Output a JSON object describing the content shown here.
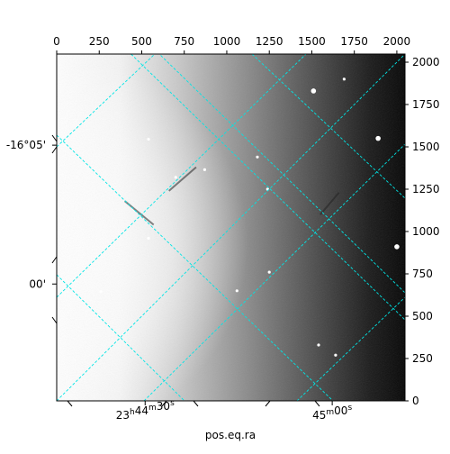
{
  "chart_data": {
    "type": "heatmap",
    "title": "",
    "colormap": "gray",
    "pixel_range": [
      0,
      2048
    ],
    "top_axis": {
      "ticks": [
        0,
        250,
        500,
        750,
        1000,
        1250,
        1500,
        1750,
        2000
      ],
      "tick_labels": [
        "0",
        "250",
        "500",
        "750",
        "1000",
        "1250",
        "1500",
        "1750",
        "2000"
      ]
    },
    "right_axis": {
      "ticks": [
        0,
        250,
        500,
        750,
        1000,
        1250,
        1500,
        1750,
        2000
      ],
      "tick_labels": [
        "0",
        "250",
        "500",
        "750",
        "1000",
        "1250",
        "1500",
        "1750",
        "2000"
      ]
    },
    "bottom_axis": {
      "label": "pos.eq.ra",
      "ticks": [
        {
          "pixel": 520,
          "h": "23",
          "m": "44",
          "s": "30"
        },
        {
          "pixel": 1620,
          "h": "",
          "m": "45",
          "s": "00"
        }
      ]
    },
    "left_axis": {
      "ticks": [
        {
          "pixel": 1510,
          "label": "-16°05'"
        },
        {
          "pixel": 690,
          "label": "00'"
        }
      ]
    },
    "grid": {
      "color": "#00e5e5",
      "style": "dashed"
    },
    "stars": [
      {
        "x": 1510,
        "y": 1830
      },
      {
        "x": 1890,
        "y": 1550
      },
      {
        "x": 2000,
        "y": 910
      },
      {
        "x": 540,
        "y": 960
      },
      {
        "x": 1240,
        "y": 1250
      },
      {
        "x": 1250,
        "y": 760
      },
      {
        "x": 1060,
        "y": 650
      },
      {
        "x": 260,
        "y": 645
      },
      {
        "x": 700,
        "y": 1320
      },
      {
        "x": 1180,
        "y": 1440
      },
      {
        "x": 540,
        "y": 1545
      },
      {
        "x": 1640,
        "y": 270
      },
      {
        "x": 1540,
        "y": 330
      },
      {
        "x": 870,
        "y": 1365
      },
      {
        "x": 1690,
        "y": 1900
      }
    ],
    "streaks": [
      {
        "x1": 400,
        "y1": 1180,
        "x2": 570,
        "y2": 1040
      },
      {
        "x1": 1550,
        "y1": 1100,
        "x2": 1660,
        "y2": 1230
      },
      {
        "x1": 660,
        "y1": 1240,
        "x2": 820,
        "y2": 1380
      }
    ]
  }
}
